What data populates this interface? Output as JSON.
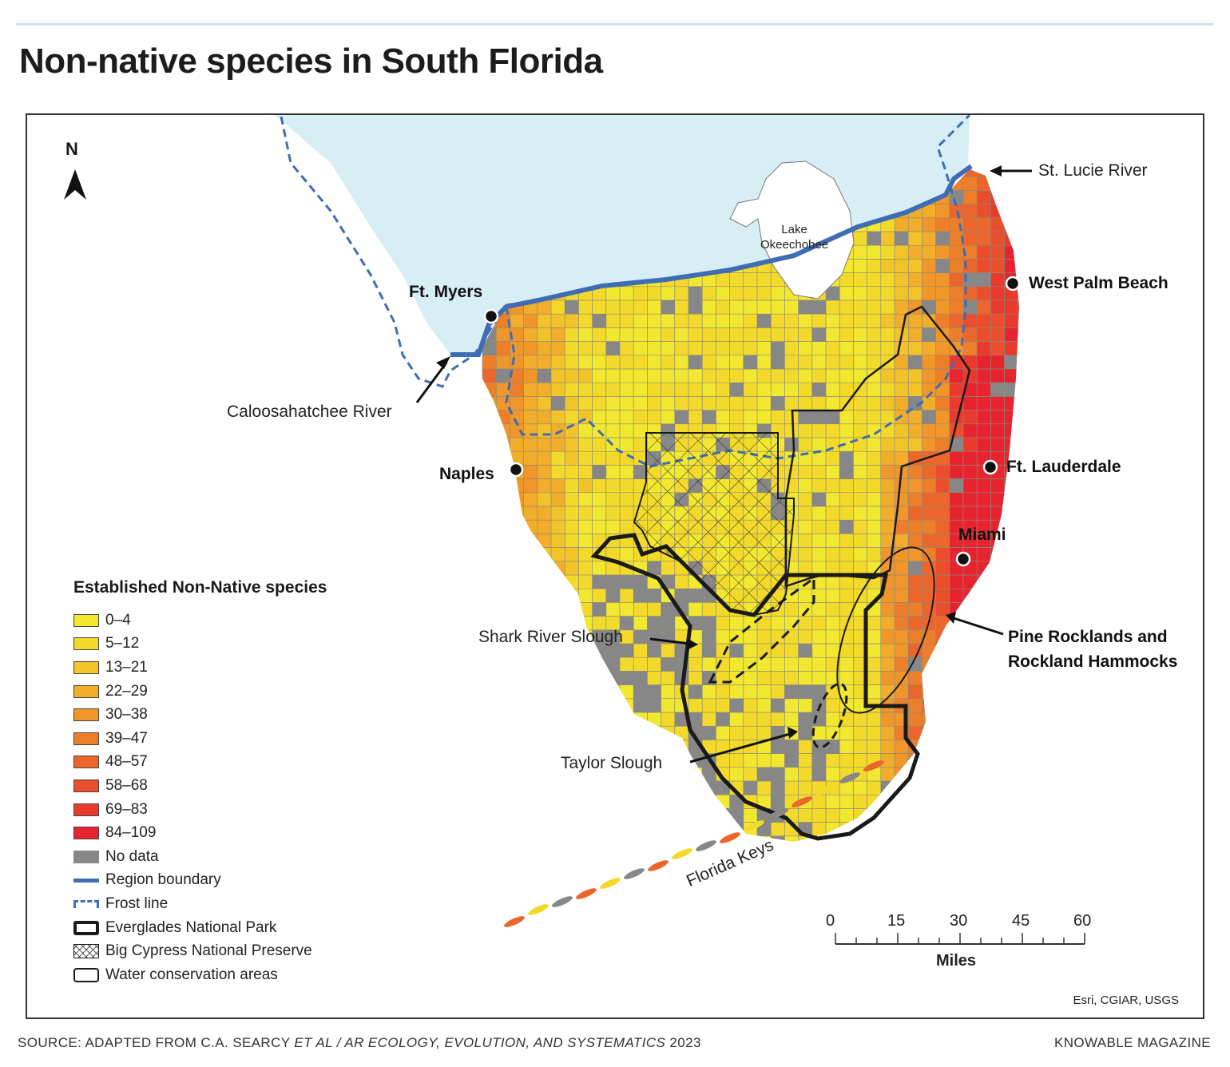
{
  "title": "Non-native species in South Florida",
  "legend": {
    "title": "Established Non-Native species",
    "bins": [
      {
        "label": "0–4",
        "color": "#f2e830"
      },
      {
        "label": "5–12",
        "color": "#f3da2a"
      },
      {
        "label": "13–21",
        "color": "#f2c42a"
      },
      {
        "label": "22–29",
        "color": "#f2ad2a"
      },
      {
        "label": "30–38",
        "color": "#f0962a"
      },
      {
        "label": "39–47",
        "color": "#ee7f2a"
      },
      {
        "label": "48–57",
        "color": "#ec652b"
      },
      {
        "label": "58–68",
        "color": "#eb4e2c"
      },
      {
        "label": "69–83",
        "color": "#ea3a2d"
      },
      {
        "label": "84–109",
        "color": "#e6232e"
      }
    ],
    "no_data": {
      "label": "No data",
      "color": "#878787"
    },
    "region_boundary": {
      "label": "Region boundary",
      "color": "#3f6db5"
    },
    "frost_line": {
      "label": "Frost line",
      "color": "#3f6db5"
    },
    "everglades": {
      "label": "Everglades National Park"
    },
    "big_cypress": {
      "label": "Big Cypress National Preserve"
    },
    "water_conservation": {
      "label": "Water conservation areas"
    }
  },
  "north_label": "N",
  "cities": [
    {
      "name": "Ft. Myers"
    },
    {
      "name": "Naples"
    },
    {
      "name": "West Palm Beach"
    },
    {
      "name": "Ft. Lauderdale"
    },
    {
      "name": "Miami"
    }
  ],
  "annotations": {
    "st_lucie": "St. Lucie River",
    "caloosahatchee": "Caloosahatchee River",
    "lake": [
      "Lake",
      "Okeechobee"
    ],
    "shark_river": "Shark River Slough",
    "taylor": "Taylor Slough",
    "pine_rocklands": [
      "Pine Rocklands and",
      "Rockland Hammocks"
    ],
    "keys": "Florida Keys"
  },
  "scale": {
    "ticks": [
      "0",
      "15",
      "30",
      "45",
      "60"
    ],
    "unit": "Miles"
  },
  "credit": "Esri, CGIAR, USGS",
  "source": {
    "prefix": "SOURCE: ADAPTED FROM C.A. SEARCY ",
    "italic": "ET AL / AR ECOLOGY, EVOLUTION, AND SYSTEMATICS",
    "suffix": " 2023"
  },
  "brand": "KNOWABLE MAGAZINE",
  "colors": {
    "water": "#d8eef5",
    "grid_line": "#8a8a7a",
    "park_border": "#1a1a1a"
  }
}
